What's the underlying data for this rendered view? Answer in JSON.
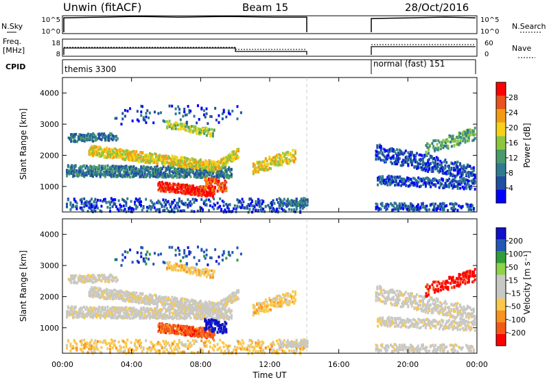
{
  "header": {
    "station": "Unwin (fitACF)",
    "beam": "Beam 15",
    "date": "28/Oct/2016"
  },
  "panels": {
    "nsky_label": "N.Sky",
    "nsky_ticks": [
      "10^5",
      "10^0"
    ],
    "nsearch_label": "N.Search",
    "nsearch_ticks": [
      "10^5",
      "10^0"
    ],
    "freq_label": "Freq.",
    "freq_unit": "[MHz]",
    "freq_ticks": [
      "18",
      "8"
    ],
    "nave_label": "Nave",
    "nave_ticks": [
      "60",
      "0"
    ],
    "cpid_label": "CPID",
    "cpid_1": "themis 3300",
    "cpid_2": "normal (fast) 151"
  },
  "chart_data": [
    {
      "type": "heatmap",
      "title": "",
      "ylabel": "Slant Range [km]",
      "xlabel": "",
      "xlim": [
        "00:00",
        "24:00"
      ],
      "ylim": [
        180,
        4500
      ],
      "colorbar_label": "Power [dB]",
      "colorbar_ticks": [
        "28",
        "24",
        "20",
        "16",
        "12",
        "8",
        "4"
      ],
      "colors": [
        "#0000ff",
        "#1f4fa0",
        "#2e7a8e",
        "#4a9a6a",
        "#8cc63f",
        "#f7d117",
        "#f39c12",
        "#e8531e",
        "#ff0000"
      ],
      "data_gaps": [
        [
          "14:15",
          "18:00"
        ]
      ]
    },
    {
      "type": "heatmap",
      "title": "",
      "ylabel": "Slant Range [km]",
      "xlabel": "Time UT",
      "xlim": [
        "00:00",
        "24:00"
      ],
      "ylim": [
        180,
        4500
      ],
      "xticks": [
        "00:00",
        "04:00",
        "08:00",
        "12:00",
        "16:00",
        "20:00",
        "00:00"
      ],
      "yticks": [
        "1000",
        "2000",
        "3000",
        "4000"
      ],
      "colorbar_label": "Velocity [m s⁻¹]",
      "colorbar_ticks": [
        "200",
        "100",
        "50",
        "15",
        "-15",
        "-50",
        "-100",
        "-200"
      ],
      "colors": [
        "#ff0000",
        "#f25a18",
        "#f7931e",
        "#fbc84a",
        "#c8c8c4",
        "#c8c8c4",
        "#8ed14b",
        "#2f9e3a",
        "#2257b5",
        "#1010c8"
      ],
      "data_gaps": [
        [
          "14:15",
          "18:00"
        ]
      ]
    }
  ]
}
